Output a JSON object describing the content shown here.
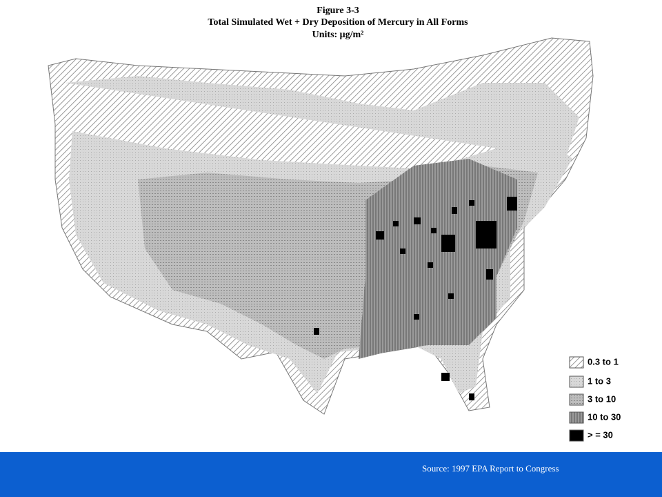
{
  "figure": {
    "label": "Figure 3-3",
    "title": "Total Simulated Wet + Dry Deposition of Mercury in All Forms",
    "units": "Units: μg/m²"
  },
  "legend": [
    "0.3 to 1",
    "1 to 3",
    "3 to 10",
    "10 to 30",
    "> = 30"
  ],
  "footer": {
    "source": "Source: 1997 EPA Report to Congress"
  }
}
